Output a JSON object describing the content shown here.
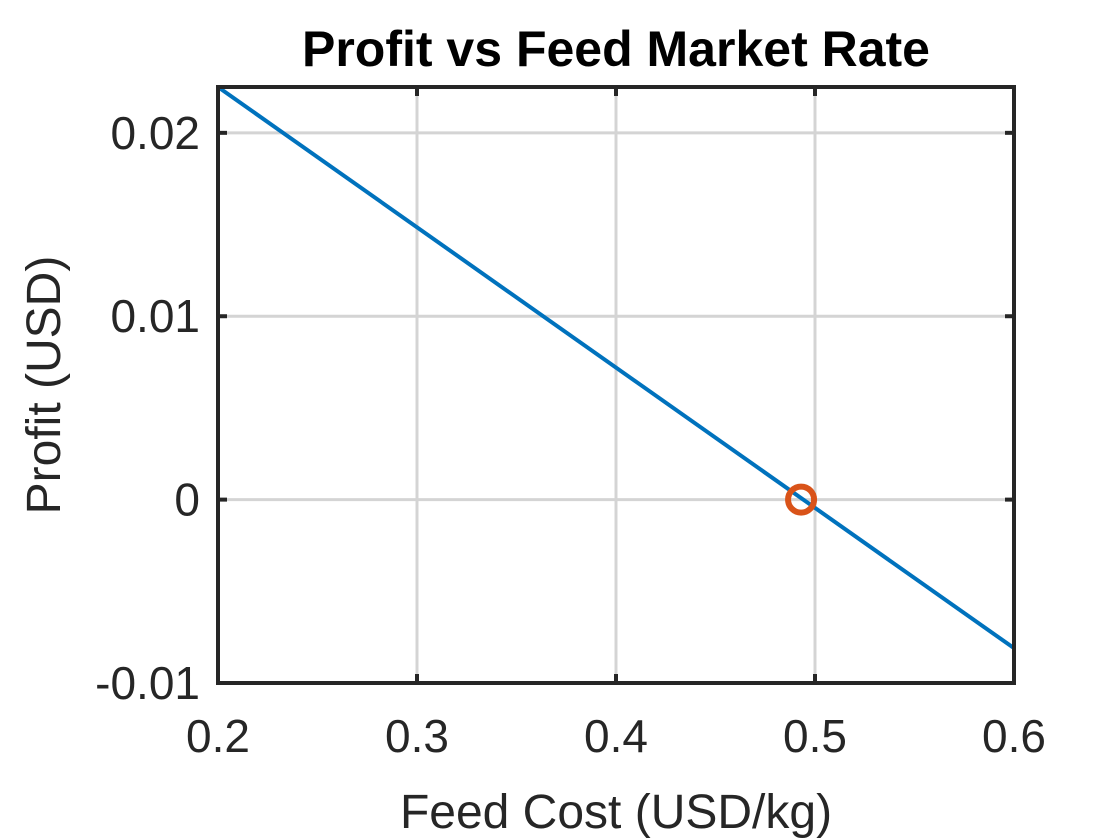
{
  "chart_data": {
    "type": "line",
    "title": "Profit vs Feed Market Rate",
    "xlabel": "Feed Cost (USD/kg)",
    "ylabel": "Profit (USD)",
    "xlim": [
      0.2,
      0.6
    ],
    "ylim": [
      -0.01,
      0.0225
    ],
    "xticks": [
      0.2,
      0.3,
      0.4,
      0.5,
      0.6
    ],
    "xtick_labels": [
      "0.2",
      "0.3",
      "0.4",
      "0.5",
      "0.6"
    ],
    "yticks": [
      -0.01,
      0,
      0.01,
      0.02
    ],
    "ytick_labels": [
      "-0.01",
      "0",
      "0.01",
      "0.02"
    ],
    "grid": true,
    "series": [
      {
        "x": [
          0.2,
          0.6
        ],
        "y": [
          0.0225,
          -0.0081
        ],
        "color": "#0072BD",
        "style": "line"
      },
      {
        "x": [
          0.493
        ],
        "y": [
          0
        ],
        "color": "#D95319",
        "style": "circle-marker"
      }
    ]
  }
}
